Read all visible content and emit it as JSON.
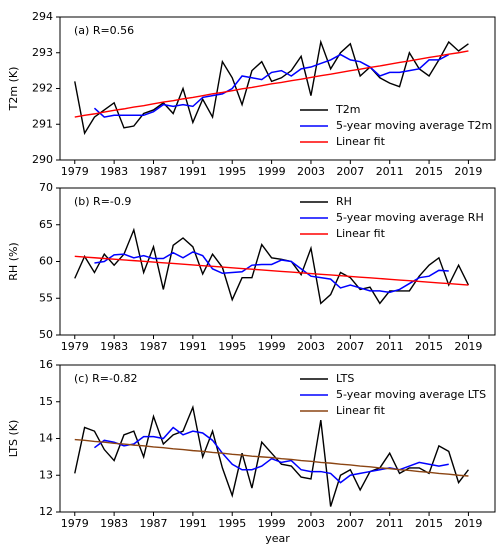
{
  "chart_data": [
    {
      "type": "line",
      "annotation": "(a) R=0.56",
      "ylabel": "T2m (K)",
      "x": [
        1979,
        1980,
        1981,
        1982,
        1983,
        1984,
        1985,
        1986,
        1987,
        1988,
        1989,
        1990,
        1991,
        1992,
        1993,
        1994,
        1995,
        1996,
        1997,
        1998,
        1999,
        2000,
        2001,
        2002,
        2003,
        2004,
        2005,
        2006,
        2007,
        2008,
        2009,
        2010,
        2011,
        2012,
        2013,
        2014,
        2015,
        2016,
        2017,
        2018,
        2019
      ],
      "xlim": [
        1977.5,
        2021.7
      ],
      "xticks": [
        1979,
        1983,
        1987,
        1991,
        1995,
        1999,
        2003,
        2007,
        2011,
        2015,
        2019
      ],
      "ylim": [
        290,
        294
      ],
      "yticks": [
        290,
        291,
        292,
        293,
        294
      ],
      "legend": "lower right",
      "series": [
        {
          "name": "T2m",
          "color": "#000000",
          "values": [
            292.2,
            290.75,
            291.2,
            291.4,
            291.6,
            290.9,
            290.95,
            291.3,
            291.4,
            291.6,
            291.3,
            292.0,
            291.05,
            291.7,
            291.2,
            292.75,
            292.3,
            291.55,
            292.5,
            292.75,
            292.2,
            292.3,
            292.5,
            292.9,
            291.8,
            293.3,
            292.55,
            293.0,
            293.25,
            292.35,
            292.6,
            292.3,
            292.15,
            292.05,
            293.0,
            292.55,
            292.35,
            292.8,
            293.3,
            293.05,
            293.25
          ]
        },
        {
          "name": "5-year moving average T2m",
          "color": "#0000ff",
          "values": [
            null,
            null,
            291.45,
            291.2,
            291.25,
            291.25,
            291.25,
            291.25,
            291.35,
            291.55,
            291.5,
            291.55,
            291.5,
            291.75,
            291.8,
            291.85,
            292.0,
            292.35,
            292.3,
            292.25,
            292.45,
            292.5,
            292.35,
            292.55,
            292.6,
            292.7,
            292.8,
            292.95,
            292.8,
            292.75,
            292.6,
            292.35,
            292.45,
            292.45,
            292.5,
            292.55,
            292.8,
            292.8,
            292.95,
            null,
            null
          ]
        },
        {
          "name": "Linear fit",
          "color": "#ff0000",
          "values": [
            291.2,
            291.25,
            291.29,
            291.34,
            291.39,
            291.43,
            291.48,
            291.52,
            291.57,
            291.62,
            291.66,
            291.71,
            291.75,
            291.8,
            291.85,
            291.89,
            291.94,
            291.99,
            292.03,
            292.08,
            292.13,
            292.17,
            292.22,
            292.26,
            292.31,
            292.36,
            292.4,
            292.45,
            292.5,
            292.54,
            292.59,
            292.63,
            292.68,
            292.73,
            292.77,
            292.82,
            292.87,
            292.91,
            292.96,
            293.0,
            293.05
          ]
        }
      ]
    },
    {
      "type": "line",
      "annotation": "(b) R=-0.9",
      "ylabel": "RH (%)",
      "x": [
        1979,
        1980,
        1981,
        1982,
        1983,
        1984,
        1985,
        1986,
        1987,
        1988,
        1989,
        1990,
        1991,
        1992,
        1993,
        1994,
        1995,
        1996,
        1997,
        1998,
        1999,
        2000,
        2001,
        2002,
        2003,
        2004,
        2005,
        2006,
        2007,
        2008,
        2009,
        2010,
        2011,
        2012,
        2013,
        2014,
        2015,
        2016,
        2017,
        2018,
        2019
      ],
      "xlim": [
        1977.5,
        2021.7
      ],
      "xticks": [
        1979,
        1983,
        1987,
        1991,
        1995,
        1999,
        2003,
        2007,
        2011,
        2015,
        2019
      ],
      "ylim": [
        50,
        70
      ],
      "yticks": [
        50,
        55,
        60,
        65,
        70
      ],
      "legend": "upper right",
      "series": [
        {
          "name": "RH",
          "color": "#000000",
          "values": [
            57.7,
            60.7,
            58.5,
            61.0,
            59.5,
            61.0,
            64.3,
            58.5,
            62.0,
            56.2,
            62.2,
            63.2,
            62.0,
            58.3,
            61.0,
            59.2,
            54.8,
            57.8,
            57.8,
            62.3,
            60.5,
            60.3,
            60.0,
            58.2,
            61.8,
            54.3,
            55.5,
            58.5,
            57.8,
            56.2,
            56.5,
            54.3,
            56.0,
            56.0,
            56.0,
            58.0,
            59.5,
            60.5,
            56.8,
            59.5,
            56.8
          ]
        },
        {
          "name": "5-year moving average RH",
          "color": "#0000ff",
          "values": [
            null,
            null,
            59.8,
            60.0,
            60.9,
            61.0,
            60.5,
            60.8,
            60.4,
            60.4,
            61.2,
            60.5,
            61.3,
            60.8,
            59.0,
            58.4,
            58.5,
            58.6,
            59.5,
            59.6,
            59.6,
            60.2,
            60.0,
            59.0,
            58.0,
            57.8,
            57.6,
            56.4,
            56.8,
            56.4,
            56.0,
            56.0,
            55.8,
            56.2,
            57.0,
            57.8,
            58.0,
            58.8,
            58.7,
            null,
            null
          ]
        },
        {
          "name": "Linear fit",
          "color": "#ff0000",
          "values": [
            60.7,
            60.6,
            60.51,
            60.41,
            60.31,
            60.21,
            60.12,
            60.02,
            59.92,
            59.82,
            59.73,
            59.63,
            59.53,
            59.43,
            59.34,
            59.24,
            59.14,
            59.04,
            58.95,
            58.85,
            58.75,
            58.65,
            58.56,
            58.46,
            58.36,
            58.26,
            58.17,
            58.07,
            57.97,
            57.87,
            57.78,
            57.68,
            57.58,
            57.48,
            57.39,
            57.29,
            57.19,
            57.09,
            57.0,
            56.9,
            56.8
          ]
        }
      ]
    },
    {
      "type": "line",
      "annotation": "(c) R=-0.82",
      "ylabel": "LTS (K)",
      "xlabel": "year",
      "x": [
        1979,
        1980,
        1981,
        1982,
        1983,
        1984,
        1985,
        1986,
        1987,
        1988,
        1989,
        1990,
        1991,
        1992,
        1993,
        1994,
        1995,
        1996,
        1997,
        1998,
        1999,
        2000,
        2001,
        2002,
        2003,
        2004,
        2005,
        2006,
        2007,
        2008,
        2009,
        2010,
        2011,
        2012,
        2013,
        2014,
        2015,
        2016,
        2017,
        2018,
        2019
      ],
      "xlim": [
        1977.5,
        2021.7
      ],
      "xticks": [
        1979,
        1983,
        1987,
        1991,
        1995,
        1999,
        2003,
        2007,
        2011,
        2015,
        2019
      ],
      "ylim": [
        12,
        16
      ],
      "yticks": [
        12,
        13,
        14,
        15,
        16
      ],
      "legend": "upper right",
      "series": [
        {
          "name": "LTS",
          "color": "#000000",
          "values": [
            13.05,
            14.3,
            14.2,
            13.7,
            13.4,
            14.1,
            14.2,
            13.5,
            14.6,
            13.85,
            14.1,
            14.2,
            14.85,
            13.5,
            14.2,
            13.2,
            12.45,
            13.6,
            12.65,
            13.9,
            13.6,
            13.3,
            13.25,
            12.95,
            12.9,
            14.5,
            12.15,
            13.0,
            13.15,
            12.6,
            13.1,
            13.2,
            13.6,
            13.05,
            13.2,
            13.2,
            13.05,
            13.8,
            13.65,
            12.8,
            13.15
          ]
        },
        {
          "name": "5-year moving average LTS",
          "color": "#0000ff",
          "values": [
            null,
            null,
            13.75,
            13.95,
            13.9,
            13.8,
            13.85,
            14.05,
            14.05,
            14.0,
            14.3,
            14.1,
            14.2,
            14.15,
            13.95,
            13.6,
            13.3,
            13.15,
            13.15,
            13.25,
            13.45,
            13.35,
            13.4,
            13.15,
            13.1,
            13.1,
            13.05,
            12.8,
            13.0,
            13.05,
            13.1,
            13.15,
            13.2,
            13.15,
            13.25,
            13.35,
            13.3,
            13.25,
            13.3,
            null,
            null
          ]
        },
        {
          "name": "Linear fit",
          "color": "#8b4513",
          "values": [
            13.97,
            13.95,
            13.92,
            13.9,
            13.87,
            13.85,
            13.82,
            13.8,
            13.77,
            13.75,
            13.72,
            13.7,
            13.67,
            13.65,
            13.62,
            13.6,
            13.57,
            13.55,
            13.52,
            13.5,
            13.48,
            13.45,
            13.43,
            13.4,
            13.38,
            13.35,
            13.33,
            13.3,
            13.28,
            13.25,
            13.23,
            13.2,
            13.18,
            13.15,
            13.13,
            13.1,
            13.08,
            13.05,
            13.03,
            13.0,
            12.98
          ]
        }
      ]
    }
  ]
}
